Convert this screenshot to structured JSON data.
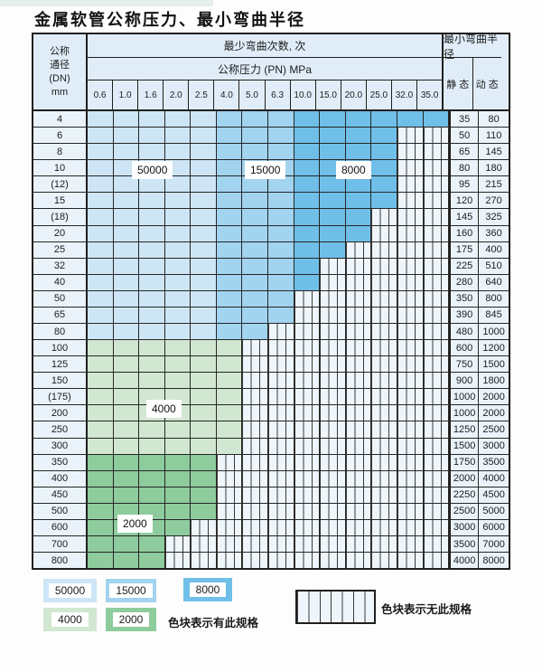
{
  "page": {
    "title": "金属软管公称压力、最小弯曲半径"
  },
  "table": {
    "header": {
      "dn_lines": [
        "公称",
        "通径",
        "(DN)",
        "mm"
      ],
      "bend_cycles_label": "最少弯曲次数, 次",
      "pressure_label": "公称压力 (PN) MPa",
      "radius_label": "最小弯曲半径",
      "static_label": "静 态",
      "dynamic_label": "动 态",
      "pressure_cols": [
        "0.6",
        "1.0",
        "1.6",
        "2.0",
        "2.5",
        "4.0",
        "5.0",
        "6.3",
        "10.0",
        "15.0",
        "20.0",
        "25.0",
        "32.0",
        "35.0"
      ]
    },
    "rows": [
      {
        "dn": "4",
        "colored": 14,
        "scheme": "blue",
        "static": "35",
        "dynamic": "80"
      },
      {
        "dn": "6",
        "colored": 12,
        "scheme": "blue",
        "static": "50",
        "dynamic": "110"
      },
      {
        "dn": "8",
        "colored": 12,
        "scheme": "blue",
        "static": "65",
        "dynamic": "145"
      },
      {
        "dn": "10",
        "colored": 12,
        "scheme": "blue",
        "static": "80",
        "dynamic": "180"
      },
      {
        "dn": "(12)",
        "colored": 12,
        "scheme": "blue",
        "static": "95",
        "dynamic": "215"
      },
      {
        "dn": "15",
        "colored": 12,
        "scheme": "blue",
        "static": "120",
        "dynamic": "270"
      },
      {
        "dn": "(18)",
        "colored": 11,
        "scheme": "blue",
        "static": "145",
        "dynamic": "325"
      },
      {
        "dn": "20",
        "colored": 11,
        "scheme": "blue",
        "static": "160",
        "dynamic": "360"
      },
      {
        "dn": "25",
        "colored": 10,
        "scheme": "blue",
        "static": "175",
        "dynamic": "400"
      },
      {
        "dn": "32",
        "colored": 9,
        "scheme": "blue",
        "static": "225",
        "dynamic": "510"
      },
      {
        "dn": "40",
        "colored": 9,
        "scheme": "blue",
        "static": "280",
        "dynamic": "640"
      },
      {
        "dn": "50",
        "colored": 8,
        "scheme": "blue",
        "static": "350",
        "dynamic": "800"
      },
      {
        "dn": "65",
        "colored": 8,
        "scheme": "blue",
        "static": "390",
        "dynamic": "845"
      },
      {
        "dn": "80",
        "colored": 7,
        "scheme": "blue",
        "static": "480",
        "dynamic": "1000"
      },
      {
        "dn": "100",
        "colored": 6,
        "scheme": "green_light",
        "static": "600",
        "dynamic": "1200"
      },
      {
        "dn": "125",
        "colored": 6,
        "scheme": "green_light",
        "static": "750",
        "dynamic": "1500"
      },
      {
        "dn": "150",
        "colored": 6,
        "scheme": "green_light",
        "static": "900",
        "dynamic": "1800"
      },
      {
        "dn": "(175)",
        "colored": 6,
        "scheme": "green_light",
        "static": "1000",
        "dynamic": "2000"
      },
      {
        "dn": "200",
        "colored": 6,
        "scheme": "green_light",
        "static": "1000",
        "dynamic": "2000"
      },
      {
        "dn": "250",
        "colored": 6,
        "scheme": "green_light",
        "static": "1250",
        "dynamic": "2500"
      },
      {
        "dn": "300",
        "colored": 6,
        "scheme": "green_light",
        "static": "1500",
        "dynamic": "3000"
      },
      {
        "dn": "350",
        "colored": 5,
        "scheme": "green_dark",
        "static": "1750",
        "dynamic": "3500"
      },
      {
        "dn": "400",
        "colored": 5,
        "scheme": "green_dark",
        "static": "2000",
        "dynamic": "4000"
      },
      {
        "dn": "450",
        "colored": 5,
        "scheme": "green_dark",
        "static": "2250",
        "dynamic": "4500"
      },
      {
        "dn": "500",
        "colored": 5,
        "scheme": "green_dark",
        "static": "2500",
        "dynamic": "5000"
      },
      {
        "dn": "600",
        "colored": 4,
        "scheme": "green_dark",
        "static": "3000",
        "dynamic": "6000"
      },
      {
        "dn": "700",
        "colored": 3,
        "scheme": "green_dark",
        "static": "3500",
        "dynamic": "7000"
      },
      {
        "dn": "800",
        "colored": 3,
        "scheme": "green_dark",
        "static": "4000",
        "dynamic": "8000"
      }
    ],
    "overlay_labels": [
      "50000",
      "15000",
      "8000",
      "4000",
      "2000"
    ]
  },
  "legend": {
    "items": [
      {
        "label": "50000",
        "color_key": "blue_light"
      },
      {
        "label": "15000",
        "color_key": "blue_mid"
      },
      {
        "label": "8000",
        "color_key": "blue_dark"
      },
      {
        "label": "4000",
        "color_key": "green_light"
      },
      {
        "label": "2000",
        "color_key": "green_dark"
      }
    ],
    "has_spec_text": "色块表示有此规格",
    "no_spec_text": "色块表示无此规格"
  },
  "colors": {
    "blue_light": "#cde5f5",
    "blue_mid": "#a2d3ef",
    "blue_dark": "#6fbfe9",
    "green_light": "#d1e7d1",
    "green_dark": "#8ecb9d",
    "cell_bg": "#eaf3fa",
    "hatch_bg": "#eef5fb",
    "grid": "#262626"
  }
}
